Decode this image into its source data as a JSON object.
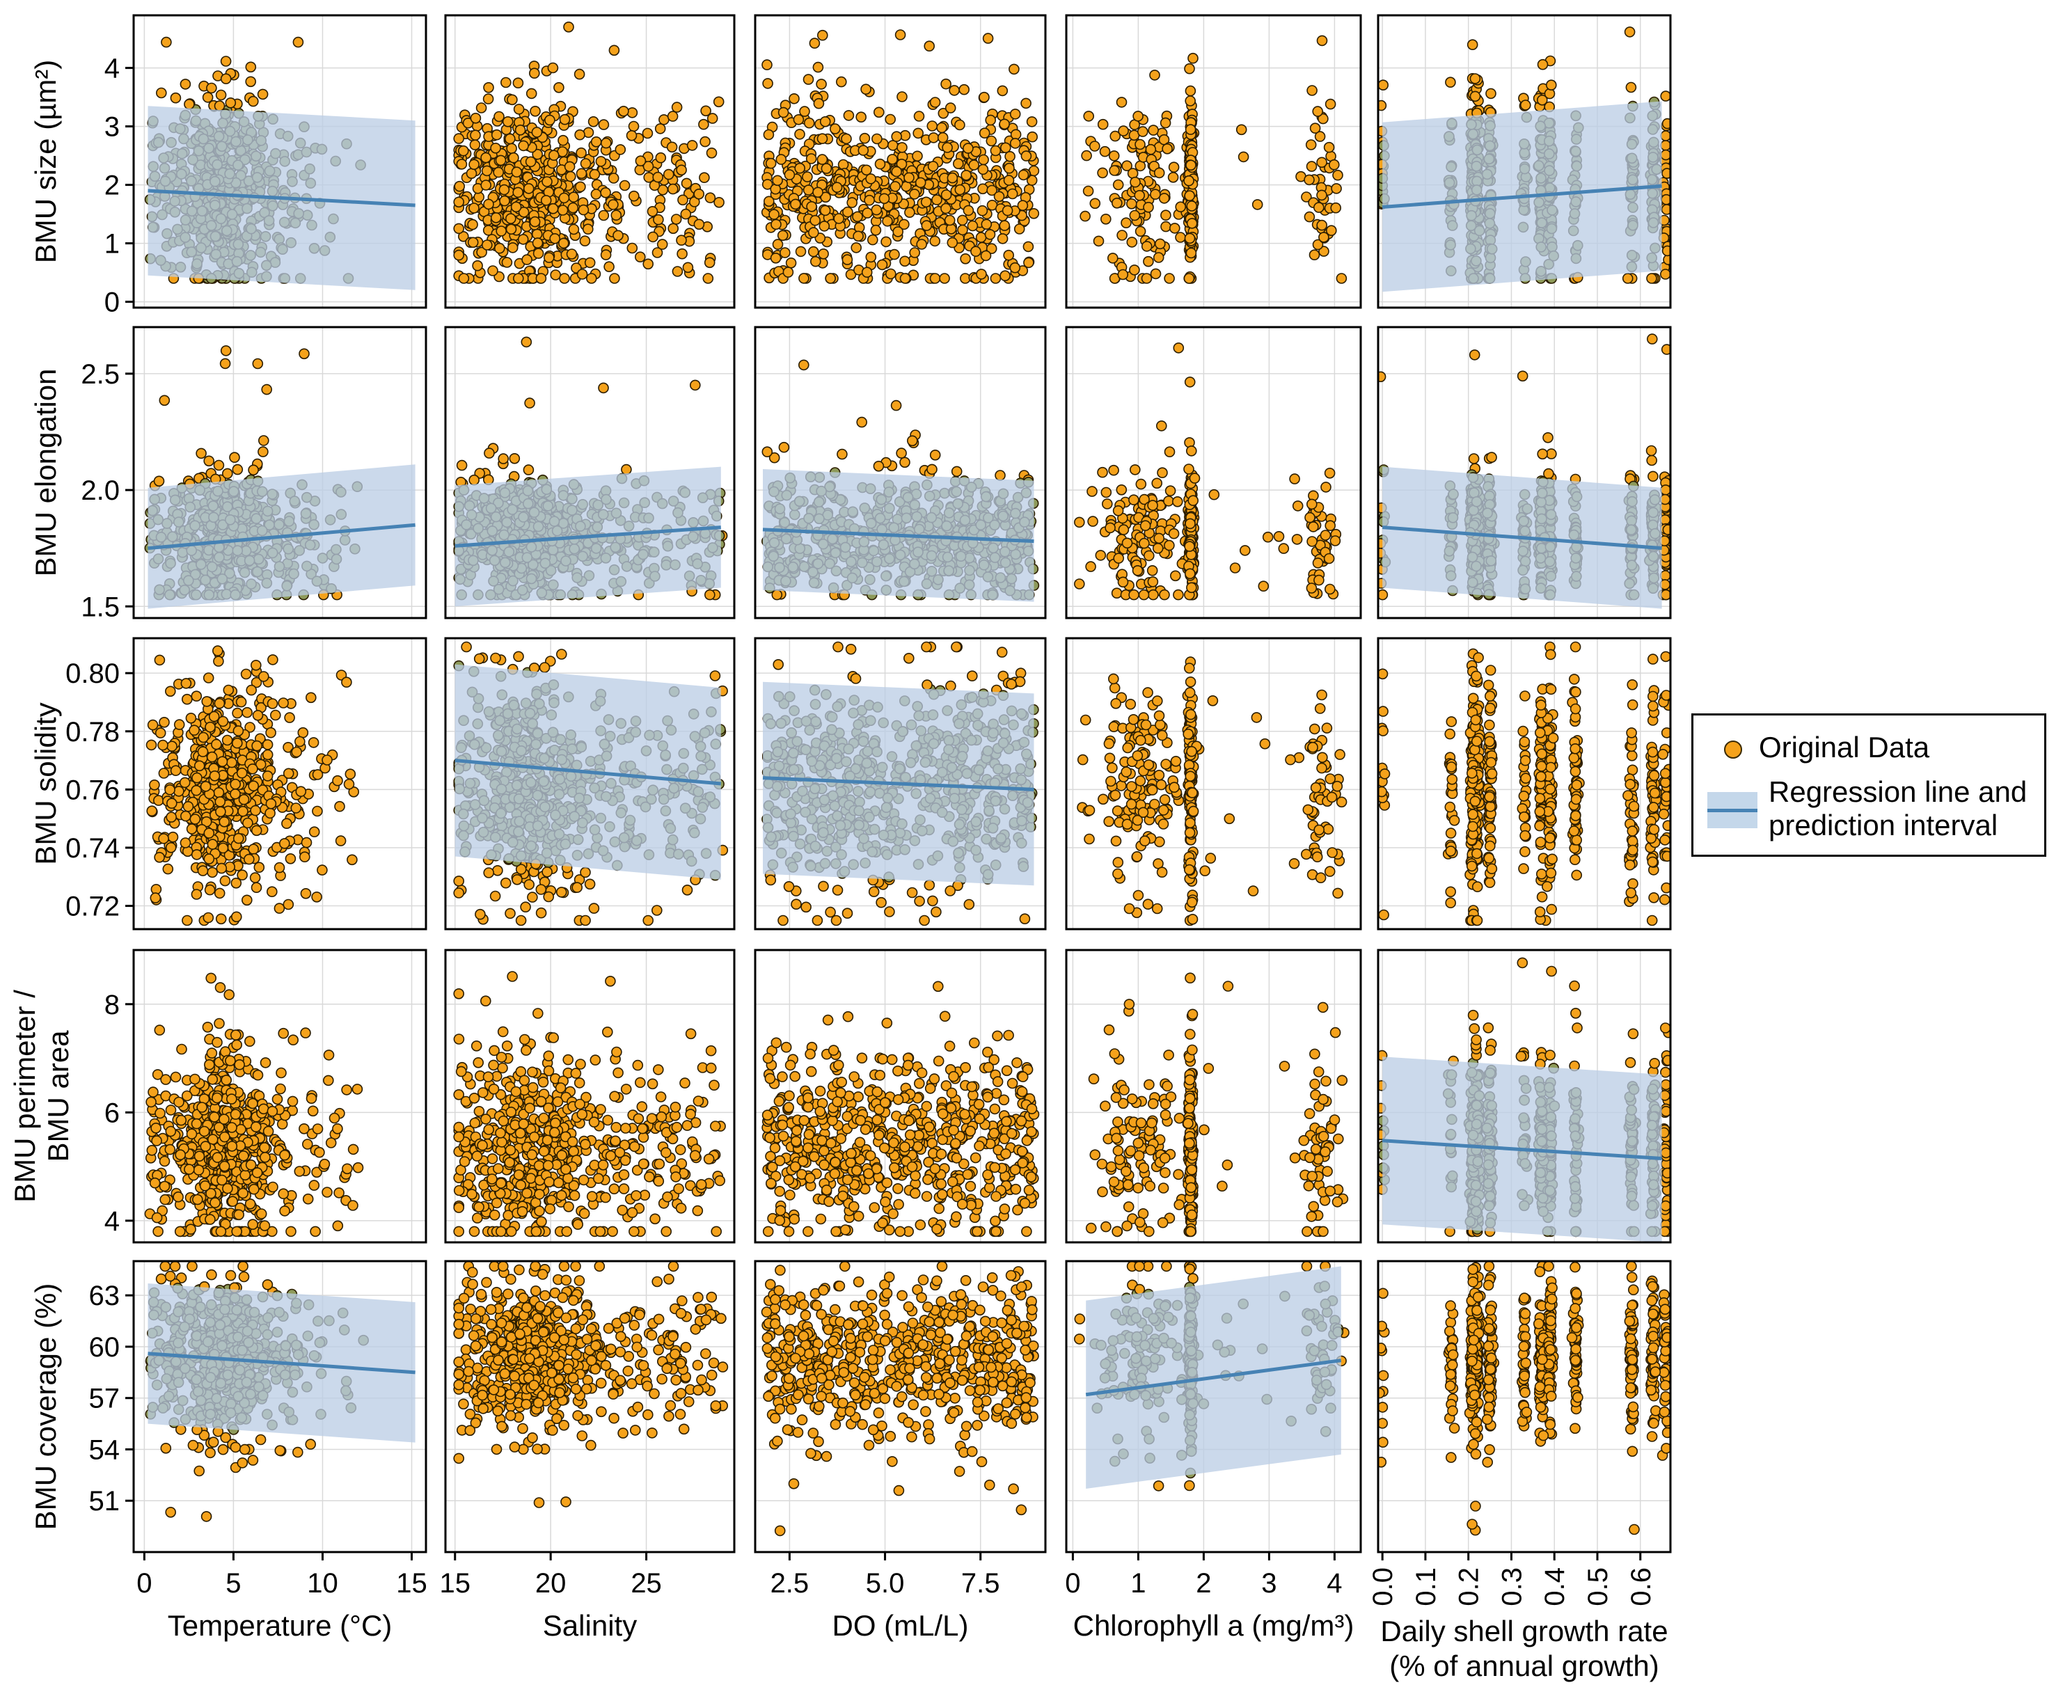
{
  "chart_data": {
    "type": "scatter",
    "grid": true,
    "colors": {
      "points": "#F5A21B",
      "point_edge": "#2b1d00",
      "regression_line": "#4682B4",
      "prediction_band": "#B9CCE4",
      "overlap_points": "#8E9A5A"
    },
    "legend": {
      "placement": "right",
      "entries": [
        "Original Data",
        "Regression line and prediction interval"
      ],
      "entry_lines": [
        [
          "Original Data"
        ],
        [
          "Regression line and",
          "prediction interval"
        ]
      ]
    },
    "columns": [
      {
        "xlabel": "Temperature (°C)",
        "xlim": [
          -0.6,
          15.8
        ],
        "xticks": [
          0,
          5,
          10,
          15
        ],
        "xtick_labels": [
          "0",
          "5",
          "10",
          "15"
        ],
        "x_range": [
          0.3,
          15.2
        ],
        "density": "low_high_low"
      },
      {
        "xlabel": "Salinity",
        "xlim": [
          14.5,
          29.6
        ],
        "xticks": [
          15,
          20,
          25
        ],
        "xtick_labels": [
          "15",
          "20",
          "25"
        ],
        "x_range": [
          15.2,
          29.0
        ],
        "density": "peak_19"
      },
      {
        "xlabel": "DO (mL/L)",
        "xlim": [
          1.6,
          9.2
        ],
        "xticks": [
          2.5,
          5.0,
          7.5
        ],
        "xtick_labels": [
          "2.5",
          "5.0",
          "7.5"
        ],
        "x_range": [
          1.9,
          8.9
        ],
        "density": "uniform"
      },
      {
        "xlabel": "Chlorophyll a (mg/m³)",
        "xlim": [
          -0.1,
          4.4
        ],
        "xticks": [
          0,
          1,
          2,
          3,
          4
        ],
        "xtick_labels": [
          "0",
          "1",
          "2",
          "3",
          "4"
        ],
        "x_range": [
          0.1,
          4.1
        ],
        "density": "clusters_chl"
      },
      {
        "xlabel_lines": [
          "Daily shell growth rate",
          "(% of annual growth)"
        ],
        "xlabel": "Daily shell growth rate (% of annual growth)",
        "xlim": [
          -0.01,
          0.67
        ],
        "xticks": [
          0.0,
          0.1,
          0.2,
          0.3,
          0.4,
          0.5,
          0.6
        ],
        "xtick_labels": [
          "0.0",
          "0.1",
          "0.2",
          "0.3",
          "0.4",
          "0.5",
          "0.6"
        ],
        "x_range": [
          0.0,
          0.65
        ],
        "density": "discrete"
      }
    ],
    "rows": [
      {
        "ylabel": "BMU size (µm²)",
        "ylabel_lines": [
          "BMU size (µm²)"
        ],
        "ylim": [
          -0.1,
          4.9
        ],
        "yticks": [
          0,
          1,
          2,
          3,
          4
        ],
        "ytick_labels": [
          "0",
          "1",
          "2",
          "3",
          "4"
        ],
        "y_center": 1.9,
        "y_spread": 0.8,
        "y_min": 0.4,
        "y_max": 4.7,
        "regressions": [
          {
            "column": 0,
            "x": [
              0.2,
              15.2
            ],
            "y": [
              1.9,
              1.65
            ],
            "band_half_width": 1.45
          },
          {
            "column": 4,
            "x": [
              0.0,
              0.65
            ],
            "y": [
              1.62,
              1.98
            ],
            "band_half_width": 1.45
          }
        ]
      },
      {
        "ylabel": "BMU elongation",
        "ylabel_lines": [
          "BMU elongation"
        ],
        "ylim": [
          1.45,
          2.7
        ],
        "yticks": [
          1.5,
          2.0,
          2.5
        ],
        "ytick_labels": [
          "1.5",
          "2.0",
          "2.5"
        ],
        "y_center": 1.8,
        "y_spread": 0.13,
        "y_min": 1.55,
        "y_max": 2.67,
        "regressions": [
          {
            "column": 0,
            "x": [
              0.2,
              15.2
            ],
            "y": [
              1.75,
              1.85
            ],
            "band_half_width": 0.26
          },
          {
            "column": 1,
            "x": [
              15.0,
              28.9
            ],
            "y": [
              1.76,
              1.84
            ],
            "band_half_width": 0.26
          },
          {
            "column": 2,
            "x": [
              1.8,
              8.9
            ],
            "y": [
              1.83,
              1.78
            ],
            "band_half_width": 0.26
          },
          {
            "column": 4,
            "x": [
              0.0,
              0.65
            ],
            "y": [
              1.84,
              1.75
            ],
            "band_half_width": 0.26
          }
        ]
      },
      {
        "ylabel": "BMU solidity",
        "ylabel_lines": [
          "BMU solidity"
        ],
        "ylim": [
          0.712,
          0.812
        ],
        "yticks": [
          0.72,
          0.74,
          0.76,
          0.78,
          0.8
        ],
        "ytick_labels": [
          "0.72",
          "0.74",
          "0.76",
          "0.78",
          "0.80"
        ],
        "y_center": 0.76,
        "y_spread": 0.018,
        "y_min": 0.715,
        "y_max": 0.809,
        "regressions": [
          {
            "column": 1,
            "x": [
              15.0,
              28.9
            ],
            "y": [
              0.77,
              0.762
            ],
            "band_half_width": 0.033
          },
          {
            "column": 2,
            "x": [
              1.8,
              8.9
            ],
            "y": [
              0.764,
              0.76
            ],
            "band_half_width": 0.033
          }
        ]
      },
      {
        "ylabel": "BMU perimeter / BMU area",
        "ylabel_lines": [
          "BMU perimeter /",
          "BMU area"
        ],
        "ylim": [
          3.6,
          9.0
        ],
        "yticks": [
          4,
          6,
          8
        ],
        "ytick_labels": [
          "4",
          "6",
          "8"
        ],
        "y_center": 5.4,
        "y_spread": 0.85,
        "y_min": 3.8,
        "y_max": 8.8,
        "regressions": [
          {
            "column": 4,
            "x": [
              0.0,
              0.65
            ],
            "y": [
              5.48,
              5.15
            ],
            "band_half_width": 1.55
          }
        ]
      },
      {
        "ylabel": "BMU coverage (%)",
        "ylabel_lines": [
          "BMU coverage (%)"
        ],
        "ylim": [
          48.0,
          65.0
        ],
        "yticks": [
          51,
          54,
          57,
          60,
          63
        ],
        "ytick_labels": [
          "51",
          "54",
          "57",
          "60",
          "63"
        ],
        "y_center": 59.3,
        "y_spread": 2.3,
        "y_min": 49.2,
        "y_max": 64.7,
        "regressions": [
          {
            "column": 0,
            "x": [
              0.2,
              15.2
            ],
            "y": [
              59.6,
              58.5
            ],
            "band_half_width": 4.1
          },
          {
            "column": 3,
            "x": [
              0.2,
              4.1
            ],
            "y": [
              57.2,
              59.2
            ],
            "band_half_width": 5.5
          }
        ]
      }
    ]
  }
}
